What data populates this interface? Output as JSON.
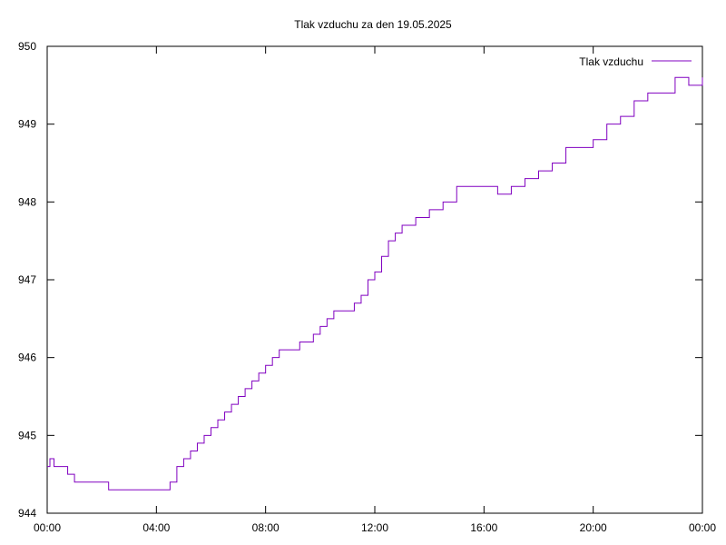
{
  "chart_data": {
    "type": "line",
    "title": "Tlak vzduchu za den 19.05.2025",
    "xlabel": "",
    "ylabel": "",
    "xlim_hours": [
      0,
      24
    ],
    "ylim": [
      944,
      950
    ],
    "x_ticks": [
      {
        "value": 0,
        "label": "00:00"
      },
      {
        "value": 4,
        "label": "04:00"
      },
      {
        "value": 8,
        "label": "08:00"
      },
      {
        "value": 12,
        "label": "12:00"
      },
      {
        "value": 16,
        "label": "16:00"
      },
      {
        "value": 20,
        "label": "20:00"
      },
      {
        "value": 24,
        "label": "00:00"
      }
    ],
    "y_ticks": [
      {
        "value": 944,
        "label": "944"
      },
      {
        "value": 945,
        "label": "945"
      },
      {
        "value": 946,
        "label": "946"
      },
      {
        "value": 947,
        "label": "947"
      },
      {
        "value": 948,
        "label": "948"
      },
      {
        "value": 949,
        "label": "949"
      },
      {
        "value": 950,
        "label": "950"
      }
    ],
    "grid": false,
    "legend_position": "top-right",
    "series": [
      {
        "name": "Tlak vzduchu",
        "color": "#8000c0",
        "x_hours": [
          0.0,
          0.1,
          0.25,
          0.5,
          0.75,
          1.0,
          1.5,
          2.0,
          2.25,
          2.5,
          2.75,
          3.0,
          3.5,
          3.75,
          4.0,
          4.25,
          4.5,
          4.75,
          5.0,
          5.25,
          5.5,
          5.75,
          6.0,
          6.25,
          6.5,
          6.75,
          7.0,
          7.25,
          7.5,
          7.75,
          8.0,
          8.25,
          8.5,
          8.75,
          9.0,
          9.25,
          9.5,
          9.75,
          10.0,
          10.25,
          10.5,
          10.75,
          11.0,
          11.25,
          11.5,
          11.75,
          12.0,
          12.25,
          12.5,
          12.75,
          13.0,
          13.5,
          14.0,
          14.5,
          15.0,
          15.5,
          16.0,
          16.5,
          17.0,
          17.5,
          18.0,
          18.5,
          19.0,
          19.5,
          20.0,
          20.5,
          21.0,
          21.5,
          22.0,
          22.5,
          23.0,
          23.5,
          24.0
        ],
        "values": [
          944.6,
          944.7,
          944.6,
          944.6,
          944.5,
          944.4,
          944.4,
          944.4,
          944.3,
          944.3,
          944.3,
          944.3,
          944.3,
          944.3,
          944.3,
          944.3,
          944.4,
          944.6,
          944.7,
          944.8,
          944.9,
          945.0,
          945.1,
          945.2,
          945.3,
          945.4,
          945.5,
          945.6,
          945.7,
          945.8,
          945.9,
          946.0,
          946.1,
          946.1,
          946.1,
          946.2,
          946.2,
          946.3,
          946.4,
          946.5,
          946.6,
          946.6,
          946.6,
          946.7,
          946.8,
          947.0,
          947.1,
          947.3,
          947.5,
          947.6,
          947.7,
          947.8,
          947.9,
          948.0,
          948.2,
          948.2,
          948.2,
          948.1,
          948.2,
          948.3,
          948.4,
          948.5,
          948.7,
          948.7,
          948.8,
          949.0,
          949.1,
          949.3,
          949.4,
          949.4,
          949.6,
          949.5,
          949.6
        ]
      }
    ]
  }
}
